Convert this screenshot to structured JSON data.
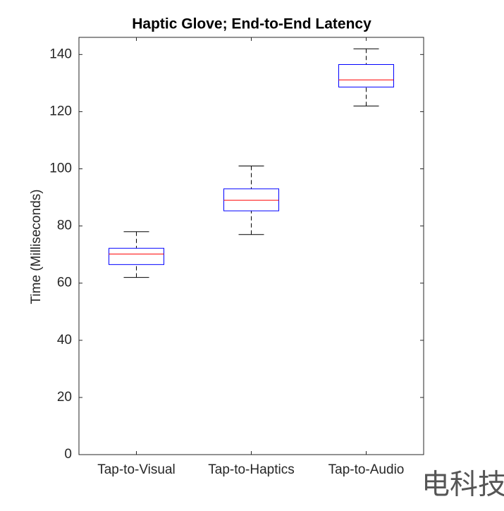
{
  "chart_data": {
    "type": "box",
    "title": "Haptic Glove; End-to-End Latency",
    "y_label": "Time (Milliseconds)",
    "categories": [
      "Tap-to-Visual",
      "Tap-to-Haptics",
      "Tap-to-Audio"
    ],
    "min": [
      62,
      77,
      122
    ],
    "q1": [
      66.5,
      85.3,
      128.6
    ],
    "median": [
      70.2,
      89,
      131.1
    ],
    "q3": [
      72.2,
      93,
      136.5
    ],
    "max": [
      78,
      101,
      142
    ],
    "box_color": "#0000ff",
    "median_color": "#ff0000",
    "whisker_color": "#000000",
    "ylim": [
      0,
      146
    ],
    "yticks": [
      0,
      20,
      40,
      60,
      80,
      100,
      120,
      140
    ]
  },
  "watermark": "电科技"
}
